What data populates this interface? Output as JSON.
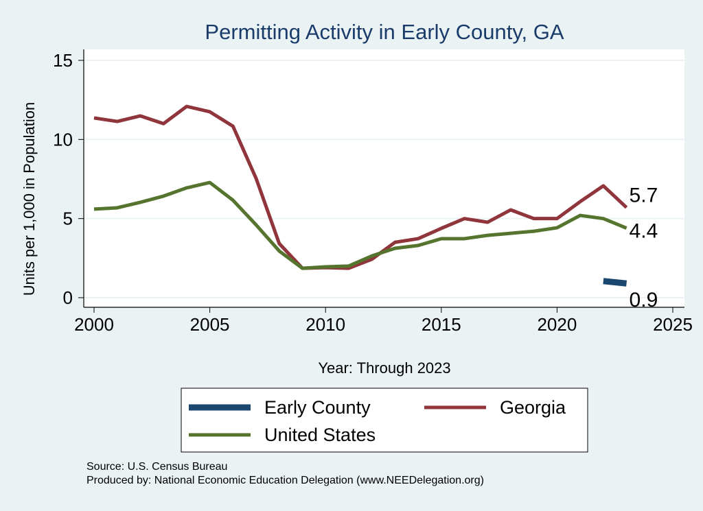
{
  "chart_data": {
    "type": "line",
    "title": "Permitting Activity in Early County, GA",
    "xlabel": "Year: Through 2023",
    "ylabel": "Units per 1,000 in Population",
    "xlim": [
      2000,
      2025
    ],
    "ylim": [
      0,
      15
    ],
    "xticks": [
      "2000",
      "2005",
      "2010",
      "2015",
      "2020",
      "2025"
    ],
    "yticks": [
      "0",
      "5",
      "10",
      "15"
    ],
    "grid": true,
    "legend_position": "bottom",
    "x": [
      2000,
      2001,
      2002,
      2003,
      2004,
      2005,
      2006,
      2007,
      2008,
      2009,
      2010,
      2011,
      2012,
      2013,
      2014,
      2015,
      2016,
      2017,
      2018,
      2019,
      2020,
      2021,
      2022,
      2023
    ],
    "series": [
      {
        "name": "Early County",
        "color": "#1a476f",
        "x": [
          2022,
          2023
        ],
        "values": [
          1.05,
          0.9
        ],
        "end_label": "0.9"
      },
      {
        "name": "Georgia",
        "color": "#90353b",
        "values": [
          11.36,
          11.14,
          11.49,
          11.0,
          12.09,
          11.75,
          10.84,
          7.54,
          3.42,
          1.86,
          1.9,
          1.86,
          2.43,
          3.5,
          3.73,
          4.38,
          5.0,
          4.77,
          5.55,
          5.0,
          5.0,
          6.07,
          7.07,
          5.7
        ],
        "end_label": "5.7"
      },
      {
        "name": "United States",
        "color": "#55752f",
        "values": [
          5.6,
          5.68,
          6.03,
          6.42,
          6.94,
          7.28,
          6.16,
          4.6,
          2.95,
          1.86,
          1.95,
          2.0,
          2.64,
          3.12,
          3.3,
          3.73,
          3.73,
          3.94,
          4.07,
          4.2,
          4.42,
          5.2,
          5.0,
          4.4
        ],
        "end_label": "4.4"
      }
    ],
    "notes": [
      "Source: U.S. Census Bureau",
      "Produced by: National Economic Education Delegation (www.NEEDelegation.org)"
    ]
  }
}
